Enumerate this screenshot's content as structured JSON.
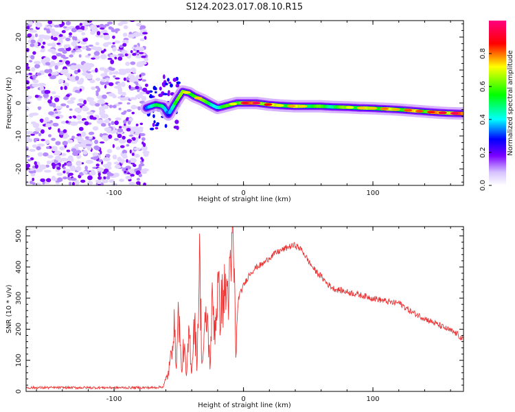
{
  "title": "S124.2023.017.08.10.R15",
  "chart_data": [
    {
      "type": "heatmap",
      "name": "spectrogram",
      "xlabel": "Height of straight line (km)",
      "ylabel": "Frequency (Hz)",
      "xlim": [
        -168,
        170
      ],
      "ylim": [
        -25,
        25
      ],
      "xticks": [
        -100,
        0,
        100
      ],
      "yticks": [
        -20,
        -10,
        0,
        10,
        20
      ],
      "colorbar": {
        "label": "Normalized spectral amplitude",
        "range": [
          0,
          1
        ],
        "ticks": [
          "0.0",
          "0.2",
          "0.4",
          "0.6",
          "0.8"
        ],
        "colormap": [
          "#ffffff",
          "#7b00ff",
          "#0000ff",
          "#00ffff",
          "#00ff00",
          "#ffff00",
          "#ff0000",
          "#ff0080"
        ]
      },
      "ridge": {
        "x": [
          -75,
          -68,
          -62,
          -58,
          -52,
          -47,
          -42,
          -38,
          -32,
          -25,
          -20,
          -15,
          -10,
          -5,
          0,
          10,
          20,
          30,
          40,
          50,
          60,
          70,
          80,
          90,
          100,
          110,
          120,
          130,
          140,
          150,
          160,
          170
        ],
        "y": [
          -1.5,
          -0.5,
          -1.0,
          -3.5,
          0.5,
          3.5,
          3.0,
          2.0,
          1.0,
          -0.5,
          -1.5,
          -1.0,
          -0.5,
          0.0,
          0.0,
          0.0,
          -0.5,
          -0.8,
          -1.0,
          -1.0,
          -1.0,
          -1.2,
          -1.3,
          -1.5,
          -1.6,
          -1.8,
          -2.0,
          -2.3,
          -2.6,
          -2.9,
          -3.1,
          -3.2
        ],
        "amplitude": [
          0.35,
          0.4,
          0.45,
          0.35,
          0.55,
          0.6,
          0.65,
          0.7,
          0.6,
          0.5,
          0.45,
          0.5,
          0.55,
          0.7,
          0.8,
          0.85,
          0.75,
          0.6,
          0.7,
          0.6,
          0.55,
          0.55,
          0.6,
          0.65,
          0.65,
          0.7,
          0.65,
          0.75,
          0.7,
          0.8,
          0.85,
          0.85
        ]
      },
      "noise_region_x": [
        -168,
        -75
      ]
    },
    {
      "type": "line",
      "name": "snr",
      "xlabel": "Height of straight line (km)",
      "ylabel": "SNR (10 * v/v)",
      "xlim": [
        -168,
        170
      ],
      "ylim": [
        0,
        530
      ],
      "xticks": [
        -100,
        0,
        100
      ],
      "yticks": [
        0,
        100,
        200,
        300,
        400,
        500
      ],
      "color": "#ee3333",
      "series": [
        {
          "x": [
            -168,
            -150,
            -130,
            -110,
            -90,
            -70,
            -62,
            -58,
            -56,
            -54,
            -52,
            -50,
            -48,
            -46,
            -44,
            -42,
            -40,
            -38,
            -36,
            -34,
            -32,
            -30,
            -28,
            -26,
            -24,
            -22,
            -20,
            -18,
            -16,
            -14,
            -12,
            -10,
            -8,
            -6,
            -4,
            -2,
            0,
            5,
            10,
            15,
            20,
            25,
            30,
            35,
            40,
            45,
            50,
            55,
            60,
            65,
            70,
            75,
            80,
            85,
            90,
            95,
            100,
            105,
            110,
            115,
            120,
            125,
            130,
            135,
            140,
            145,
            150,
            155,
            160,
            165,
            170
          ],
          "y": [
            12,
            12,
            12,
            12,
            12,
            12,
            15,
            60,
            110,
            230,
            90,
            270,
            60,
            150,
            40,
            200,
            60,
            240,
            90,
            420,
            80,
            190,
            240,
            80,
            290,
            200,
            330,
            260,
            300,
            320,
            320,
            350,
            520,
            130,
            300,
            320,
            340,
            380,
            400,
            410,
            430,
            445,
            455,
            465,
            470,
            455,
            420,
            390,
            370,
            345,
            330,
            325,
            320,
            315,
            310,
            305,
            300,
            295,
            290,
            285,
            285,
            270,
            255,
            245,
            235,
            225,
            215,
            205,
            195,
            185,
            165
          ]
        }
      ]
    }
  ]
}
